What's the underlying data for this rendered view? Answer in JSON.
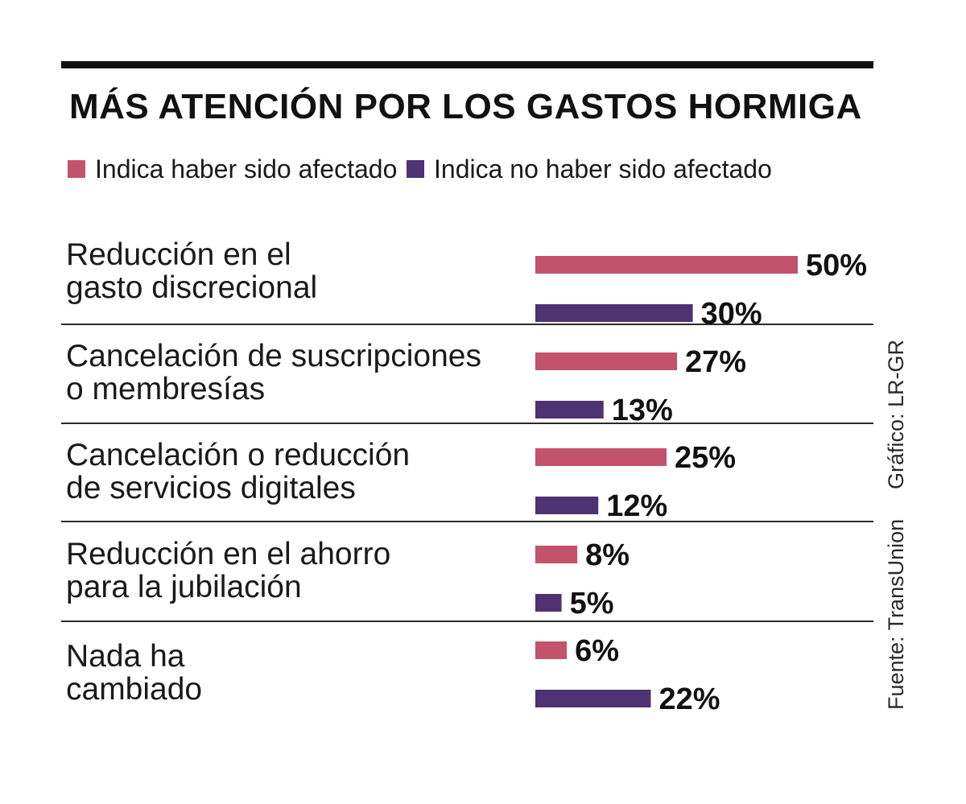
{
  "title": "MÁS ATENCIÓN POR LOS GASTOS HORMIGA",
  "colors": {
    "affected": "#c2536a",
    "not_affected": "#4e3272",
    "text": "#1a1a1a"
  },
  "legend": [
    {
      "label": "Indica haber sido afectado",
      "color": "#c2536a"
    },
    {
      "label": "Indica no haber sido afectado",
      "color": "#4e3272"
    }
  ],
  "source": "Fuente: TransUnion",
  "credit": "Gráfico: LR-GR",
  "chart_data": {
    "type": "bar",
    "orientation": "horizontal",
    "title": "MÁS ATENCIÓN POR LOS GASTOS HORMIGA",
    "categories": [
      "Reducción en el\ngasto discrecional",
      "Cancelación de suscripciones\no membresías",
      "Cancelación o reducción\nde servicios digitales",
      "Reducción en el ahorro\npara la jubilación",
      "Nada ha\ncambiado"
    ],
    "series": [
      {
        "name": "Indica haber sido afectado",
        "values": [
          50,
          27,
          25,
          8,
          6
        ],
        "labels": [
          "50%",
          "27%",
          "25%",
          "8%",
          "6%"
        ]
      },
      {
        "name": "Indica no haber sido afectado",
        "values": [
          30,
          13,
          12,
          5,
          22
        ],
        "labels": [
          "30%",
          "13%",
          "12%",
          "5%",
          "22%"
        ]
      }
    ],
    "xlim": [
      0,
      50
    ],
    "unit": "%",
    "grid": false,
    "legend_position": "top-left"
  }
}
